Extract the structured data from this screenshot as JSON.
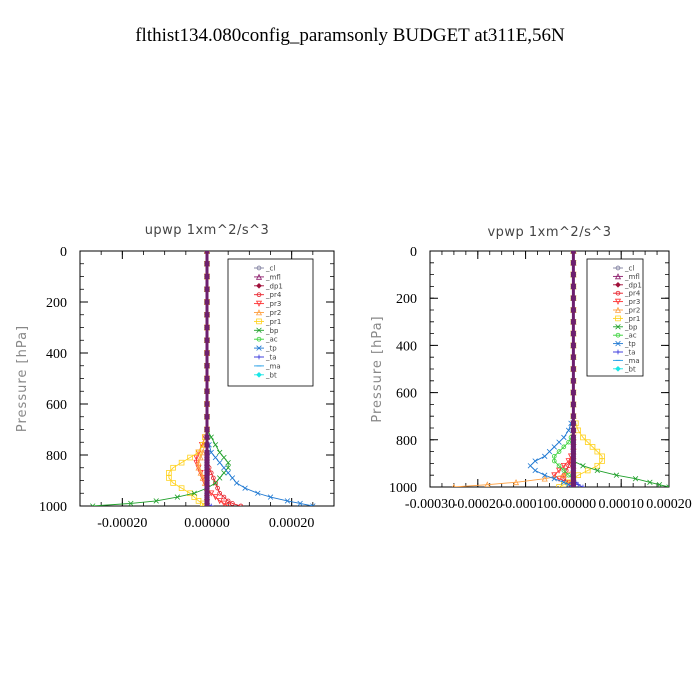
{
  "page_title": "flthist134.080config_paramsonly  BUDGET at311E,56N",
  "chart_data": [
    {
      "type": "line",
      "title": "upwp   1xm^2/s^3",
      "xlabel": "",
      "ylabel": "Pressure [hPa]",
      "xlim": [
        -0.0003,
        0.0003
      ],
      "ylim": [
        1000,
        0
      ],
      "x_ticks": [
        "-0.00020",
        "0.00000",
        "0.00020"
      ],
      "x_tick_values": [
        -0.0002,
        0.0,
        0.0002
      ],
      "y_ticks": [
        "0",
        "200",
        "400",
        "600",
        "800",
        "1000"
      ],
      "y_tick_values": [
        0,
        200,
        400,
        600,
        800,
        1000
      ],
      "pressure_levels": [
        0,
        50,
        100,
        150,
        200,
        250,
        300,
        350,
        400,
        450,
        500,
        550,
        600,
        650,
        700,
        730,
        760,
        790,
        810,
        830,
        850,
        870,
        890,
        910,
        930,
        950,
        965,
        980,
        990,
        1000
      ],
      "series": [
        {
          "name": "_cl",
          "color": "#7f7f9f",
          "marker": "circle",
          "values": [
            0,
            0,
            0,
            0,
            0,
            0,
            0,
            0,
            0,
            0,
            0,
            0,
            0,
            0,
            0,
            0,
            0,
            0,
            0,
            0,
            0,
            0,
            0,
            0,
            0,
            0,
            0,
            0,
            0,
            0
          ]
        },
        {
          "name": "_mfl",
          "color": "#8b1a6b",
          "marker": "triangle",
          "values": [
            0,
            0,
            0,
            0,
            0,
            0,
            0,
            0,
            0,
            0,
            0,
            0,
            0,
            0,
            0,
            0,
            0,
            0,
            0,
            0,
            0,
            0,
            0,
            0,
            0,
            0,
            0,
            0,
            0,
            0
          ]
        },
        {
          "name": "_dp1",
          "color": "#a0103a",
          "marker": "diamond",
          "values": [
            0,
            0,
            0,
            0,
            0,
            0,
            0,
            0,
            0,
            0,
            0,
            0,
            0,
            0,
            0,
            0,
            0,
            0,
            0,
            0,
            0,
            0,
            0,
            0,
            0,
            0,
            0,
            0,
            0,
            0
          ]
        },
        {
          "name": "_pr4",
          "color": "#e8202a",
          "marker": "circle",
          "values": [
            0,
            0,
            0,
            0,
            0,
            0,
            0,
            0,
            0,
            0,
            0,
            0,
            0,
            0,
            0,
            0,
            0,
            0,
            0,
            0,
            5e-06,
            1e-05,
            1.5e-05,
            2e-05,
            2.5e-05,
            3e-05,
            4e-05,
            5e-05,
            6e-05,
            8e-05
          ]
        },
        {
          "name": "_pr3",
          "color": "#ff3030",
          "marker": "triangle-down",
          "values": [
            0,
            0,
            0,
            0,
            0,
            0,
            0,
            0,
            0,
            0,
            0,
            0,
            0,
            0,
            0,
            -5e-06,
            -1.2e-05,
            -2e-05,
            -2.5e-05,
            -2.5e-05,
            -2e-05,
            -1.5e-05,
            -1e-05,
            -5e-06,
            0,
            1e-05,
            2e-05,
            3e-05,
            4e-05,
            5e-05
          ]
        },
        {
          "name": "_pr2",
          "color": "#ffa040",
          "marker": "triangle",
          "values": [
            0,
            0,
            0,
            0,
            0,
            0,
            0,
            0,
            0,
            0,
            0,
            0,
            0,
            0,
            0,
            0,
            -5e-06,
            -1e-05,
            -1.5e-05,
            -2e-05,
            -2e-05,
            -1.5e-05,
            -1e-05,
            -5e-06,
            0,
            0,
            0,
            0,
            0,
            0
          ]
        },
        {
          "name": "_pr1",
          "color": "#ffd21e",
          "marker": "square",
          "values": [
            0,
            0,
            0,
            0,
            0,
            0,
            0,
            0,
            0,
            0,
            0,
            0,
            0,
            0,
            0,
            -5e-06,
            -1e-05,
            -2e-05,
            -4e-05,
            -6e-05,
            -8e-05,
            -9e-05,
            -9e-05,
            -8e-05,
            -6e-05,
            -4e-05,
            -3e-05,
            -2e-05,
            -1e-05,
            -5e-06
          ]
        },
        {
          "name": "_bp",
          "color": "#1fa02a",
          "marker": "x",
          "values": [
            0,
            0,
            0,
            0,
            0,
            0,
            0,
            0,
            0,
            0,
            0,
            0,
            0,
            0,
            0,
            1e-05,
            2e-05,
            3e-05,
            4e-05,
            5e-05,
            5e-05,
            4e-05,
            3e-05,
            2e-05,
            0,
            -3e-05,
            -7e-05,
            -0.00012,
            -0.00018,
            -0.00027
          ]
        },
        {
          "name": "_ac",
          "color": "#3ad23a",
          "marker": "circle",
          "values": [
            0,
            0,
            0,
            0,
            0,
            0,
            0,
            0,
            0,
            0,
            0,
            0,
            0,
            0,
            0,
            0,
            0,
            0,
            0,
            0,
            0,
            0,
            0,
            0,
            0,
            0,
            0,
            0,
            0,
            0
          ]
        },
        {
          "name": "_tp",
          "color": "#1e78d2",
          "marker": "x",
          "values": [
            0,
            0,
            0,
            0,
            0,
            0,
            0,
            0,
            0,
            0,
            0,
            0,
            0,
            0,
            0,
            0,
            5e-06,
            1e-05,
            2e-05,
            3e-05,
            4e-05,
            5e-05,
            6e-05,
            7e-05,
            9e-05,
            0.00012,
            0.00015,
            0.00019,
            0.00022,
            0.00025
          ]
        },
        {
          "name": "_ta",
          "color": "#3232dc",
          "marker": "plus",
          "values": [
            0,
            0,
            0,
            0,
            0,
            0,
            0,
            0,
            0,
            0,
            0,
            0,
            0,
            0,
            0,
            0,
            0,
            0,
            0,
            0,
            0,
            0,
            0,
            0,
            0,
            0,
            0,
            0,
            0,
            1e-05
          ]
        },
        {
          "name": "_ma",
          "color": "#28a0e6",
          "marker": "dash",
          "values": [
            0,
            0,
            0,
            0,
            0,
            0,
            0,
            0,
            0,
            0,
            0,
            0,
            0,
            0,
            0,
            0,
            0,
            0,
            0,
            0,
            0,
            0,
            0,
            0,
            0,
            0,
            0,
            0,
            0,
            0
          ]
        },
        {
          "name": "_bt",
          "color": "#19e6e6",
          "marker": "diamond",
          "values": [
            0,
            0,
            0,
            0,
            0,
            0,
            0,
            0,
            0,
            0,
            0,
            0,
            0,
            0,
            0,
            0,
            0,
            0,
            0,
            0,
            0,
            0,
            0,
            0,
            0,
            0,
            0,
            0,
            0,
            0
          ]
        }
      ]
    },
    {
      "type": "line",
      "title": "vpwp   1xm^2/s^3",
      "xlabel": "",
      "ylabel": "Pressure [hPa]",
      "xlim": [
        -0.0003,
        0.0002
      ],
      "ylim": [
        1000,
        0
      ],
      "x_ticks": [
        "-0.00030",
        "-0.00020",
        "-0.00010",
        "0.00000",
        "0.00010",
        "0.00020"
      ],
      "x_tick_values": [
        -0.0003,
        -0.0002,
        -0.0001,
        0.0,
        0.0001,
        0.0002
      ],
      "y_ticks": [
        "0",
        "200",
        "400",
        "600",
        "800",
        "1000"
      ],
      "y_tick_values": [
        0,
        200,
        400,
        600,
        800,
        1000
      ],
      "pressure_levels": [
        0,
        50,
        100,
        150,
        200,
        250,
        300,
        350,
        400,
        450,
        500,
        550,
        600,
        650,
        700,
        730,
        760,
        790,
        810,
        830,
        850,
        870,
        890,
        910,
        930,
        950,
        965,
        980,
        990,
        1000
      ],
      "series": [
        {
          "name": "_cl",
          "color": "#7f7f9f",
          "marker": "circle",
          "values": [
            0,
            0,
            0,
            0,
            0,
            0,
            0,
            0,
            0,
            0,
            0,
            0,
            0,
            0,
            0,
            0,
            0,
            0,
            0,
            0,
            0,
            0,
            0,
            0,
            0,
            0,
            0,
            0,
            0,
            0
          ]
        },
        {
          "name": "_mfl",
          "color": "#8b1a6b",
          "marker": "triangle",
          "values": [
            0,
            0,
            0,
            0,
            0,
            0,
            0,
            0,
            0,
            0,
            0,
            0,
            0,
            0,
            0,
            0,
            0,
            0,
            0,
            0,
            0,
            0,
            0,
            0,
            0,
            0,
            0,
            0,
            0,
            0
          ]
        },
        {
          "name": "_dp1",
          "color": "#a0103a",
          "marker": "diamond",
          "values": [
            0,
            0,
            0,
            0,
            0,
            0,
            0,
            0,
            0,
            0,
            0,
            0,
            0,
            0,
            0,
            0,
            0,
            0,
            0,
            0,
            0,
            0,
            0,
            0,
            0,
            0,
            0,
            0,
            0,
            0
          ]
        },
        {
          "name": "_pr4",
          "color": "#e8202a",
          "marker": "circle",
          "values": [
            0,
            0,
            0,
            0,
            0,
            0,
            0,
            0,
            0,
            0,
            0,
            0,
            0,
            0,
            0,
            0,
            0,
            0,
            0,
            0,
            0,
            0,
            -5e-06,
            -1e-05,
            -1.5e-05,
            -2e-05,
            -2e-05,
            -1e-05,
            -5e-06,
            -5e-06
          ]
        },
        {
          "name": "_pr3",
          "color": "#ff3030",
          "marker": "triangle-down",
          "values": [
            0,
            0,
            0,
            0,
            0,
            0,
            0,
            0,
            0,
            0,
            0,
            0,
            0,
            0,
            0,
            0,
            0,
            0,
            0,
            0,
            0,
            -5e-06,
            -1e-05,
            -2e-05,
            -3e-05,
            -4e-05,
            -3e-05,
            -1e-05,
            0,
            0
          ]
        },
        {
          "name": "_pr2",
          "color": "#ffa040",
          "marker": "triangle",
          "values": [
            0,
            0,
            0,
            0,
            0,
            0,
            0,
            0,
            0,
            0,
            0,
            0,
            0,
            0,
            0,
            0,
            0,
            0,
            0,
            0,
            0,
            0,
            0,
            0,
            0,
            -2e-05,
            -6e-05,
            -0.00012,
            -0.00018,
            -0.00025
          ]
        },
        {
          "name": "_pr1",
          "color": "#ffd21e",
          "marker": "square",
          "values": [
            0,
            0,
            0,
            0,
            0,
            0,
            0,
            0,
            0,
            0,
            0,
            0,
            0,
            0,
            0,
            5e-06,
            1e-05,
            2e-05,
            3e-05,
            4e-05,
            5e-05,
            6e-05,
            6e-05,
            5e-05,
            3e-05,
            1e-05,
            0,
            -1e-05,
            -2e-05,
            -3e-05
          ]
        },
        {
          "name": "_bp",
          "color": "#1fa02a",
          "marker": "x",
          "values": [
            0,
            0,
            0,
            0,
            0,
            0,
            0,
            0,
            0,
            0,
            0,
            0,
            0,
            0,
            0,
            0,
            0,
            0,
            0,
            0,
            0,
            0,
            0,
            2e-05,
            5e-05,
            9e-05,
            0.00013,
            0.00016,
            0.00018,
            0.0002
          ]
        },
        {
          "name": "_ac",
          "color": "#3ad23a",
          "marker": "circle",
          "values": [
            0,
            0,
            0,
            0,
            0,
            0,
            0,
            0,
            0,
            0,
            0,
            0,
            0,
            0,
            0,
            0,
            0,
            -5e-06,
            -1e-05,
            -2e-05,
            -3e-05,
            -4e-05,
            -4e-05,
            -3e-05,
            -2e-05,
            -1e-05,
            0,
            0,
            0,
            0
          ]
        },
        {
          "name": "_tp",
          "color": "#1e78d2",
          "marker": "x",
          "values": [
            0,
            0,
            0,
            0,
            0,
            0,
            0,
            0,
            0,
            0,
            0,
            0,
            0,
            0,
            0,
            -5e-06,
            -1e-05,
            -2e-05,
            -3e-05,
            -4e-05,
            -5e-05,
            -6e-05,
            -8e-05,
            -9e-05,
            -8e-05,
            -6e-05,
            -4e-05,
            -2e-05,
            -1e-05,
            0
          ]
        },
        {
          "name": "_ta",
          "color": "#3232dc",
          "marker": "plus",
          "values": [
            0,
            0,
            0,
            0,
            0,
            0,
            0,
            0,
            0,
            0,
            0,
            0,
            0,
            0,
            0,
            0,
            0,
            0,
            0,
            0,
            0,
            0,
            0,
            0,
            0,
            0,
            0,
            5e-06,
            1e-05,
            2e-05
          ]
        },
        {
          "name": "_ma",
          "color": "#28a0e6",
          "marker": "dash",
          "values": [
            0,
            0,
            0,
            0,
            0,
            0,
            0,
            0,
            0,
            0,
            0,
            0,
            0,
            0,
            0,
            0,
            0,
            0,
            0,
            0,
            0,
            0,
            0,
            0,
            0,
            0,
            0,
            0,
            0,
            0
          ]
        },
        {
          "name": "_bt",
          "color": "#19e6e6",
          "marker": "diamond",
          "values": [
            0,
            0,
            0,
            0,
            0,
            0,
            0,
            0,
            0,
            0,
            0,
            0,
            0,
            0,
            0,
            0,
            0,
            0,
            0,
            0,
            0,
            0,
            0,
            0,
            0,
            0,
            0,
            0,
            0,
            0
          ]
        }
      ]
    }
  ]
}
